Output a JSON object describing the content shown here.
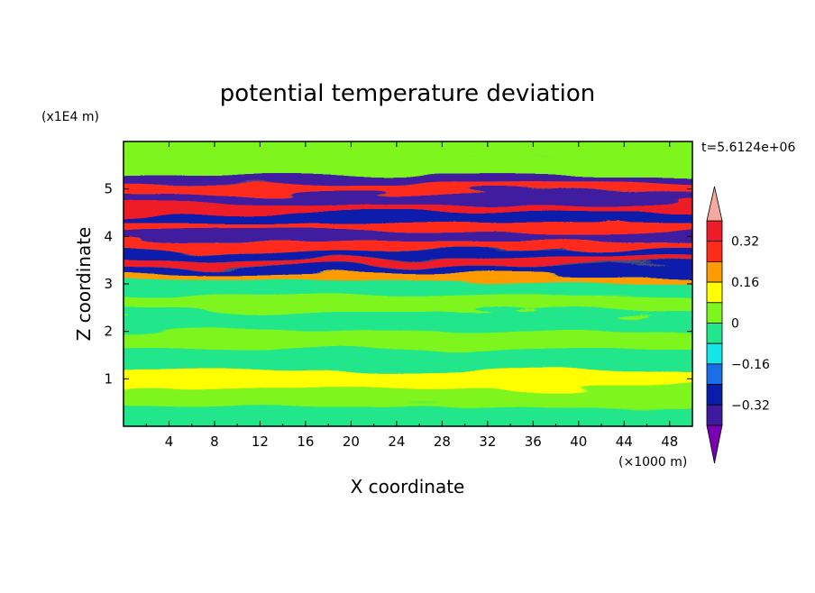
{
  "chart_data": {
    "type": "heatmap",
    "title": "potential temperature deviation",
    "xlabel": "X coordinate",
    "ylabel": "Z coordinate",
    "x_unit": "(×1000 m)",
    "y_unit": "(x1E4 m)",
    "time_label": "t=5.6124e+06",
    "xlim": [
      0,
      50
    ],
    "ylim": [
      0,
      6
    ],
    "x_ticks": [
      "4",
      "8",
      "12",
      "16",
      "20",
      "24",
      "28",
      "32",
      "36",
      "40",
      "44",
      "48"
    ],
    "y_ticks": [
      "1",
      "2",
      "3",
      "4",
      "5"
    ],
    "colorbar_labels": [
      "0.32",
      "0.16",
      "0",
      "−0.16",
      "−0.32"
    ],
    "colorbar_label_values": [
      0.32,
      0.16,
      0,
      -0.16,
      -0.32
    ],
    "levels": [
      -0.4,
      -0.32,
      -0.24,
      -0.16,
      -0.08,
      0,
      0.08,
      0.16,
      0.24,
      0.32,
      0.4
    ],
    "colors": [
      "#7a00b4",
      "#3f1a9e",
      "#0a1caa",
      "#1a6fe8",
      "#12e6e6",
      "#22e68c",
      "#7ef51e",
      "#ffff00",
      "#ff9a00",
      "#ff2a1a",
      "#ee1c26",
      "#f4a8a0"
    ],
    "bands": [
      {
        "z": 5.85,
        "value": 0.02
      },
      {
        "z": 5.45,
        "value": 0.04
      },
      {
        "z": 5.2,
        "value": -0.36
      },
      {
        "z": 5.0,
        "value": 0.3
      },
      {
        "z": 4.8,
        "value": -0.34
      },
      {
        "z": 4.6,
        "value": 0.36
      },
      {
        "z": 4.4,
        "value": -0.3
      },
      {
        "z": 4.2,
        "value": 0.28
      },
      {
        "z": 4.0,
        "value": -0.36
      },
      {
        "z": 3.8,
        "value": 0.3
      },
      {
        "z": 3.6,
        "value": -0.32
      },
      {
        "z": 3.45,
        "value": 0.38
      },
      {
        "z": 3.3,
        "value": -0.28
      },
      {
        "z": 3.15,
        "value": 0.18
      },
      {
        "z": 2.95,
        "value": -0.05
      },
      {
        "z": 2.6,
        "value": 0.03
      },
      {
        "z": 2.2,
        "value": -0.03
      },
      {
        "z": 1.8,
        "value": 0.04
      },
      {
        "z": 1.4,
        "value": -0.04
      },
      {
        "z": 1.0,
        "value": 0.08
      },
      {
        "z": 0.6,
        "value": 0.02
      },
      {
        "z": 0.2,
        "value": -0.02
      }
    ]
  }
}
